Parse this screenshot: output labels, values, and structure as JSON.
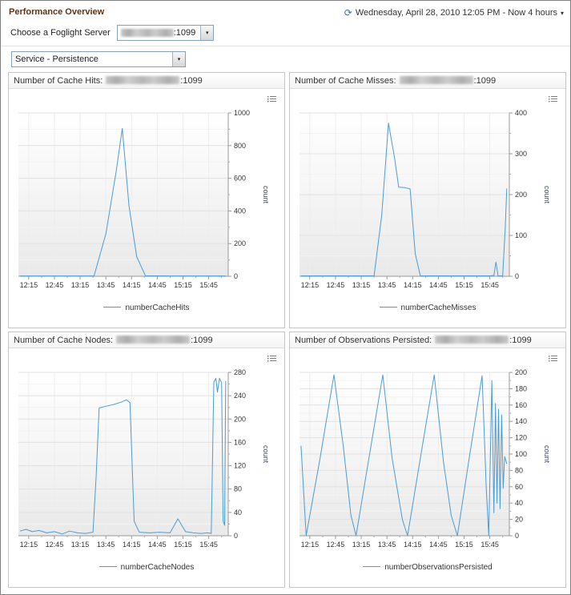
{
  "page": {
    "title": "Performance Overview",
    "time_range": "Wednesday, April 28, 2010 12:05 PM - Now 4 hours",
    "server_label": "Choose a Foglight Server",
    "server_port": ":1099",
    "service_selector": "Service - Persistence"
  },
  "chart_data": [
    {
      "type": "line",
      "title_prefix": "Number of Cache Hits:",
      "title_suffix": ":1099",
      "legend": "numberCacheHits",
      "ylabel": "count",
      "ylim": [
        0,
        1000
      ],
      "ytick_step": 200,
      "x_domain": [
        12.05,
        16.13
      ],
      "x_tick_labels": [
        "12:15",
        "12:45",
        "13:15",
        "13:45",
        "14:15",
        "14:45",
        "15:15",
        "15:45"
      ],
      "x_tick_times": [
        12.25,
        12.75,
        13.25,
        13.75,
        14.25,
        14.75,
        15.25,
        15.75
      ],
      "color": "#4b9bd5",
      "points": [
        [
          12.08,
          2
        ],
        [
          12.6,
          2
        ],
        [
          13.1,
          2
        ],
        [
          13.52,
          2
        ],
        [
          13.75,
          260
        ],
        [
          13.95,
          640
        ],
        [
          14.07,
          905
        ],
        [
          14.2,
          430
        ],
        [
          14.35,
          120
        ],
        [
          14.52,
          3
        ],
        [
          15.0,
          2
        ],
        [
          15.5,
          2
        ],
        [
          16.08,
          2
        ]
      ]
    },
    {
      "type": "line",
      "title_prefix": "Number of Cache Misses:",
      "title_suffix": ":1099",
      "legend": "numberCacheMisses",
      "ylabel": "count",
      "ylim": [
        0,
        400
      ],
      "ytick_step": 100,
      "x_domain": [
        12.05,
        16.13
      ],
      "x_tick_labels": [
        "12:15",
        "12:45",
        "13:15",
        "13:45",
        "14:15",
        "14:45",
        "15:15",
        "15:45"
      ],
      "x_tick_times": [
        12.25,
        12.75,
        13.25,
        13.75,
        14.25,
        14.75,
        15.25,
        15.75
      ],
      "color": "#4b9bd5",
      "points": [
        [
          12.08,
          1
        ],
        [
          12.6,
          1
        ],
        [
          13.1,
          1
        ],
        [
          13.5,
          1
        ],
        [
          13.65,
          150
        ],
        [
          13.78,
          375
        ],
        [
          13.9,
          288
        ],
        [
          13.98,
          218
        ],
        [
          14.1,
          217
        ],
        [
          14.2,
          214
        ],
        [
          14.3,
          55
        ],
        [
          14.4,
          1
        ],
        [
          14.8,
          1
        ],
        [
          15.3,
          1
        ],
        [
          15.75,
          1
        ],
        [
          15.83,
          2
        ],
        [
          15.87,
          35
        ],
        [
          15.91,
          1
        ],
        [
          16.0,
          1
        ],
        [
          16.05,
          120
        ],
        [
          16.08,
          215
        ]
      ]
    },
    {
      "type": "line",
      "title_prefix": "Number of Cache Nodes:",
      "title_suffix": ":1099",
      "legend": "numberCacheNodes",
      "ylabel": "count",
      "ylim": [
        0,
        280
      ],
      "ytick_step": 40,
      "x_domain": [
        12.05,
        16.13
      ],
      "x_tick_labels": [
        "12:15",
        "12:45",
        "13:15",
        "13:45",
        "14:15",
        "14:45",
        "15:15",
        "15:45"
      ],
      "x_tick_times": [
        12.25,
        12.75,
        13.25,
        13.75,
        14.25,
        14.75,
        15.25,
        15.75
      ],
      "color": "#4b9bd5",
      "points": [
        [
          12.08,
          8
        ],
        [
          12.2,
          11
        ],
        [
          12.32,
          7
        ],
        [
          12.45,
          9
        ],
        [
          12.6,
          5
        ],
        [
          12.75,
          7
        ],
        [
          12.9,
          3
        ],
        [
          13.05,
          8
        ],
        [
          13.2,
          5
        ],
        [
          13.35,
          4
        ],
        [
          13.5,
          6
        ],
        [
          13.56,
          100
        ],
        [
          13.62,
          219
        ],
        [
          13.75,
          222
        ],
        [
          13.9,
          225
        ],
        [
          14.05,
          229
        ],
        [
          14.15,
          233
        ],
        [
          14.22,
          228
        ],
        [
          14.3,
          25
        ],
        [
          14.4,
          6
        ],
        [
          14.6,
          5
        ],
        [
          14.8,
          6
        ],
        [
          15.0,
          5
        ],
        [
          15.15,
          29
        ],
        [
          15.3,
          7
        ],
        [
          15.45,
          5
        ],
        [
          15.6,
          4
        ],
        [
          15.72,
          5
        ],
        [
          15.8,
          4
        ],
        [
          15.85,
          263
        ],
        [
          15.89,
          270
        ],
        [
          15.92,
          246
        ],
        [
          15.96,
          270
        ],
        [
          16.0,
          262
        ],
        [
          16.03,
          25
        ],
        [
          16.06,
          18
        ],
        [
          16.08,
          265
        ]
      ]
    },
    {
      "type": "line",
      "title_prefix": "Number of Observations Persisted:",
      "title_suffix": ":1099",
      "legend": "numberObservationsPersisted",
      "ylabel": "count",
      "ylim": [
        0,
        200
      ],
      "ytick_step": 20,
      "x_domain": [
        12.05,
        16.13
      ],
      "x_tick_labels": [
        "12:15",
        "12:45",
        "13:15",
        "13:45",
        "14:15",
        "14:45",
        "15:15",
        "15:45"
      ],
      "x_tick_times": [
        12.25,
        12.75,
        13.25,
        13.75,
        14.25,
        14.75,
        15.25,
        15.75
      ],
      "color": "#4b9bd5",
      "points": [
        [
          12.08,
          110
        ],
        [
          12.13,
          55
        ],
        [
          12.18,
          0
        ],
        [
          12.45,
          95
        ],
        [
          12.72,
          197
        ],
        [
          12.9,
          110
        ],
        [
          13.05,
          25
        ],
        [
          13.15,
          0
        ],
        [
          13.4,
          95
        ],
        [
          13.67,
          197
        ],
        [
          13.85,
          95
        ],
        [
          14.05,
          20
        ],
        [
          14.15,
          0
        ],
        [
          14.4,
          95
        ],
        [
          14.67,
          197
        ],
        [
          14.85,
          90
        ],
        [
          15.0,
          25
        ],
        [
          15.12,
          0
        ],
        [
          15.35,
          95
        ],
        [
          15.6,
          196
        ],
        [
          15.68,
          60
        ],
        [
          15.73,
          0
        ],
        [
          15.79,
          190
        ],
        [
          15.83,
          28
        ],
        [
          15.86,
          162
        ],
        [
          15.89,
          40
        ],
        [
          15.92,
          155
        ],
        [
          15.95,
          33
        ],
        [
          15.98,
          148
        ],
        [
          16.01,
          58
        ],
        [
          16.04,
          97
        ],
        [
          16.08,
          88
        ]
      ]
    }
  ]
}
